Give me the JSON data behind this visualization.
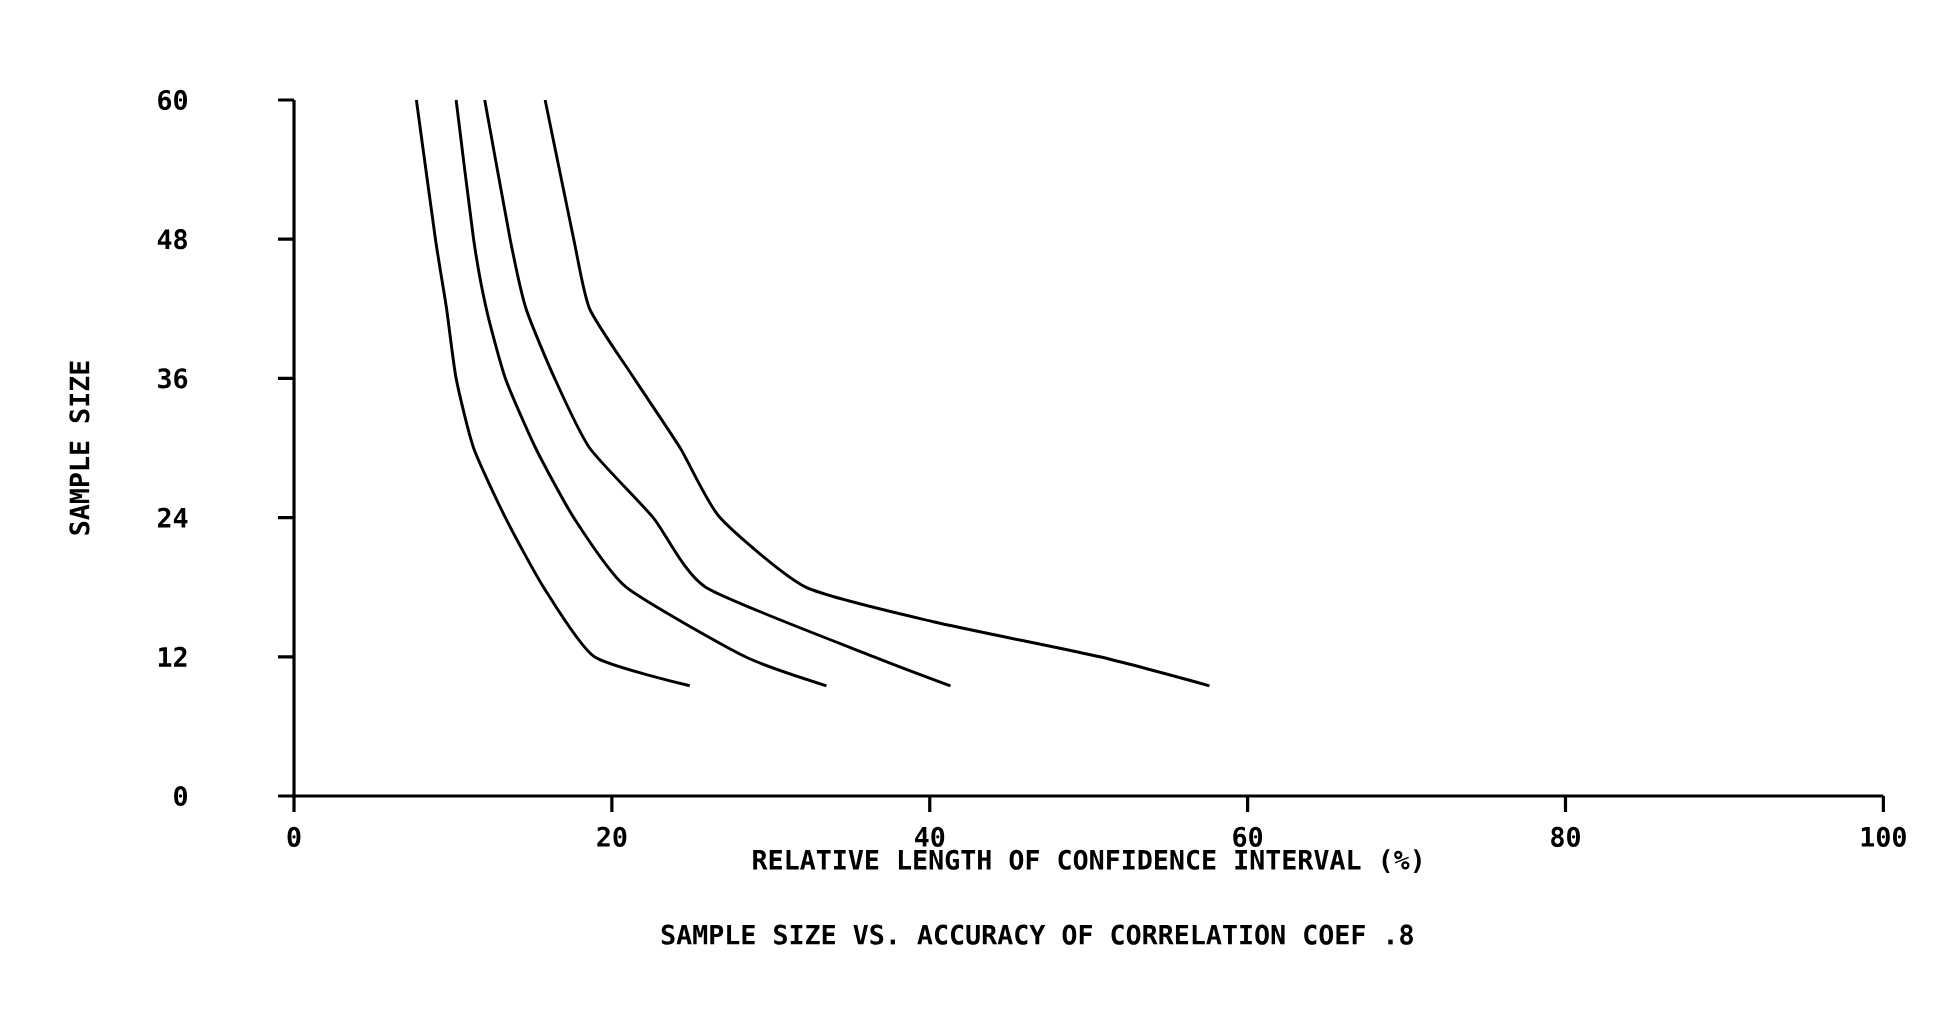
{
  "chart_data": {
    "type": "line",
    "title": "SAMPLE SIZE VS. ACCURACY OF CORRELATION COEF   .8",
    "xlabel": "RELATIVE LENGTH OF CONFIDENCE INTERVAL (%)",
    "ylabel": "SAMPLE SIZE",
    "series": [
      {
        "color": "#000000",
        "x": [
          7.7,
          8.9,
          9.6,
          10.2,
          11.3,
          13.3,
          15.7,
          18.9,
          24.9
        ],
        "values": [
          60,
          48,
          42,
          36,
          30,
          24,
          18,
          12,
          9.5
        ]
      },
      {
        "color": "#000000",
        "x": [
          10.2,
          11.3,
          12.1,
          13.3,
          15.2,
          17.6,
          20.9,
          28.4,
          33.5
        ],
        "values": [
          60,
          48,
          42,
          36,
          30,
          24,
          18,
          12,
          9.5
        ]
      },
      {
        "color": "#000000",
        "x": [
          12.0,
          13.6,
          14.6,
          16.4,
          18.6,
          22.6,
          25.9,
          36.5,
          41.3
        ],
        "values": [
          60,
          48,
          42,
          36,
          30,
          24,
          18,
          12,
          9.5
        ]
      },
      {
        "color": "#000000",
        "x": [
          15.8,
          17.6,
          18.6,
          21.4,
          24.3,
          26.8,
          32.2,
          40.3,
          50.7,
          57.6
        ],
        "values": [
          60,
          48,
          42,
          36,
          30,
          24,
          18,
          15,
          12,
          9.5
        ]
      }
    ],
    "xlim": [
      0,
      100
    ],
    "ylim": [
      0,
      60
    ],
    "xticks": [
      0,
      20,
      40,
      60,
      80,
      100
    ],
    "yticks": [
      0,
      12,
      24,
      36,
      48,
      60
    ],
    "marker": "none",
    "line_style": "solid"
  }
}
